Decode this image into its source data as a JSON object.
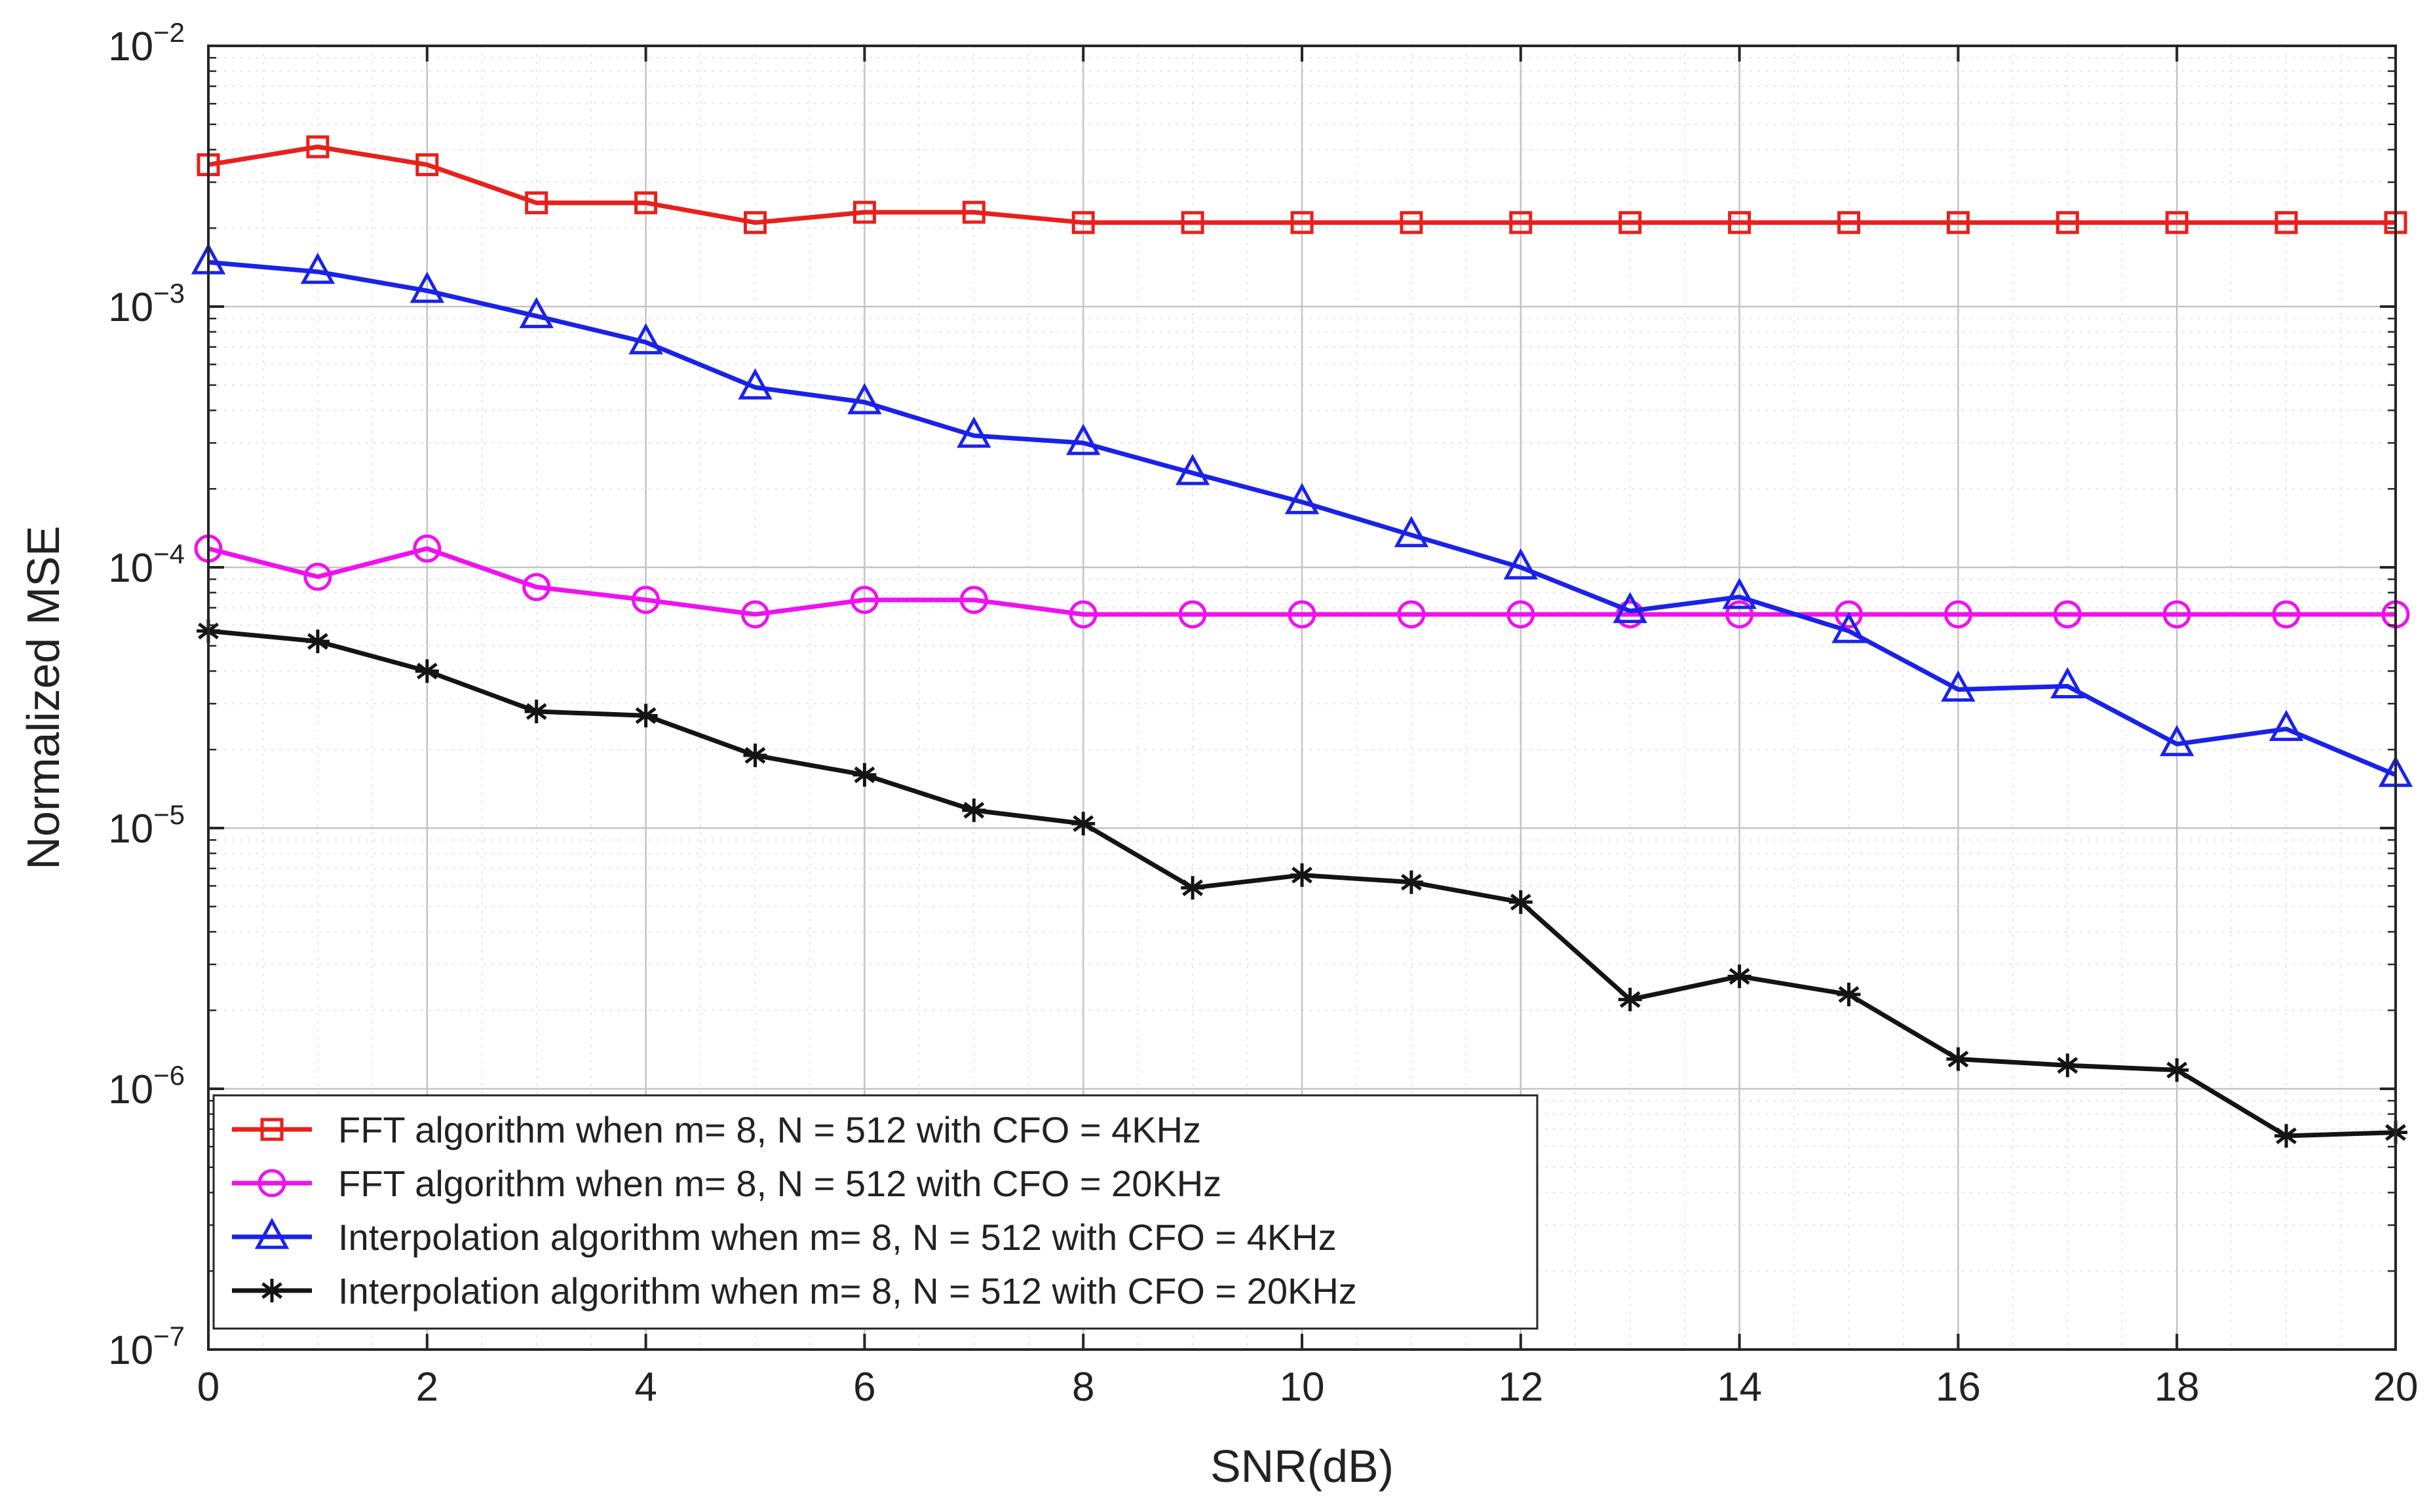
{
  "chart_data": {
    "type": "line",
    "title": "",
    "xlabel": "SNR(dB)",
    "ylabel": "Normalized MSE",
    "xlim": [
      0,
      20
    ],
    "ylim": [
      1e-07,
      0.01
    ],
    "yscale": "log",
    "grid": true,
    "minor_grid": true,
    "legend_position": "bottom-left",
    "x": [
      0,
      1,
      2,
      3,
      4,
      5,
      6,
      7,
      8,
      9,
      10,
      11,
      12,
      13,
      14,
      15,
      16,
      17,
      18,
      19,
      20
    ],
    "x_ticks": [
      0,
      2,
      4,
      6,
      8,
      10,
      12,
      14,
      16,
      18,
      20
    ],
    "x_tick_labels": [
      "0",
      "2",
      "4",
      "6",
      "8",
      "10",
      "12",
      "14",
      "16",
      "18",
      "20"
    ],
    "y_ticks": [
      {
        "value": 0.01,
        "base": "10",
        "exp": "−2"
      },
      {
        "value": 0.001,
        "base": "10",
        "exp": "−3"
      },
      {
        "value": 0.0001,
        "base": "10",
        "exp": "−4"
      },
      {
        "value": 1e-05,
        "base": "10",
        "exp": "−5"
      },
      {
        "value": 1e-06,
        "base": "10",
        "exp": "−6"
      },
      {
        "value": 1e-07,
        "base": "10",
        "exp": "−7"
      }
    ],
    "series": [
      {
        "name": "FFT algorithm when m= 8, N = 512 with CFO = 4KHz",
        "color": "#e8201c",
        "marker": "square",
        "values": [
          0.0035,
          0.0041,
          0.0035,
          0.0025,
          0.0025,
          0.0021,
          0.0023,
          0.0023,
          0.0021,
          0.0021,
          0.0021,
          0.0021,
          0.0021,
          0.0021,
          0.0021,
          0.0021,
          0.0021,
          0.0021,
          0.0021,
          0.0021,
          0.0021
        ]
      },
      {
        "name": "FFT algorithm when m= 8, N = 512 with CFO = 20KHz",
        "color": "#f010f0",
        "marker": "circle",
        "values": [
          0.000118,
          9.2e-05,
          0.000118,
          8.4e-05,
          7.5e-05,
          6.6e-05,
          7.5e-05,
          7.5e-05,
          6.6e-05,
          6.6e-05,
          6.6e-05,
          6.6e-05,
          6.6e-05,
          6.6e-05,
          6.6e-05,
          6.6e-05,
          6.6e-05,
          6.6e-05,
          6.6e-05,
          6.6e-05,
          6.6e-05
        ]
      },
      {
        "name": "Interpolation algorithm when m= 8, N = 512 with CFO = 4KHz",
        "color": "#1a22e8",
        "marker": "triangle",
        "values": [
          0.00148,
          0.00136,
          0.00115,
          0.00092,
          0.00073,
          0.00049,
          0.00043,
          0.00032,
          0.0003,
          0.00023,
          0.000178,
          0.000133,
          0.0001,
          6.8e-05,
          7.7e-05,
          5.7e-05,
          3.4e-05,
          3.5e-05,
          2.1e-05,
          2.4e-05,
          1.6e-05
        ]
      },
      {
        "name": "Interpolation algorithm when m= 8, N = 512 with CFO = 20KHz",
        "color": "#141414",
        "marker": "asterisk",
        "values": [
          5.7e-05,
          5.2e-05,
          4e-05,
          2.8e-05,
          2.7e-05,
          1.9e-05,
          1.6e-05,
          1.17e-05,
          1.04e-05,
          5.9e-06,
          6.6e-06,
          6.2e-06,
          5.2e-06,
          2.2e-06,
          2.7e-06,
          2.3e-06,
          1.3e-06,
          1.23e-06,
          1.18e-06,
          6.6e-07,
          6.8e-07
        ]
      }
    ]
  }
}
